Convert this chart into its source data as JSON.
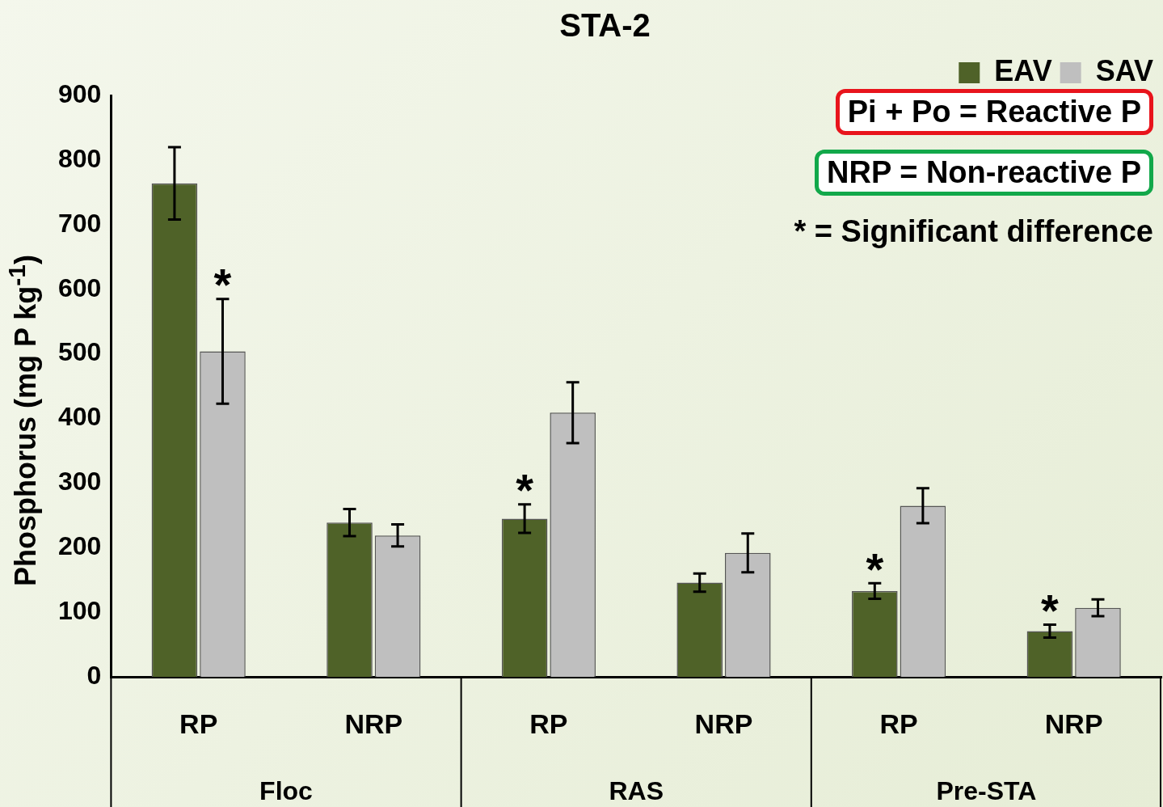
{
  "chart_data": {
    "type": "bar",
    "title": "STA-2",
    "ylabel": "Phosphorus (mg P kg$^{-1}$)",
    "categories": [
      "RP",
      "NRP",
      "RP",
      "NRP",
      "RP",
      "NRP"
    ],
    "series": [
      {
        "name": "EAV",
        "color": "#4f6228",
        "values": [
          764,
          239,
          245,
          146,
          133,
          71
        ],
        "errors": [
          56,
          21,
          22,
          14,
          12,
          10
        ],
        "value_labels": [
          null,
          null,
          "*",
          null,
          "*",
          "*"
        ]
      },
      {
        "name": "SAV",
        "color": "#bfbfbf",
        "values": [
          504,
          219,
          409,
          192,
          265,
          107
        ],
        "errors": [
          81,
          17,
          47,
          30,
          27,
          13
        ],
        "value_labels": [
          "*",
          null,
          null,
          null,
          null,
          null
        ]
      }
    ],
    "ylim": [
      0,
      900
    ],
    "yticks": [
      0,
      100,
      200,
      300,
      400,
      500,
      600,
      700,
      800,
      900
    ],
    "grid": false,
    "legend": "top right",
    "annotations": [
      "Pi + Po = Reactive P",
      "NRP = Non-reactive P",
      "* = Significant difference",
      "Floc",
      "RAS",
      "Pre-STA"
    ]
  }
}
